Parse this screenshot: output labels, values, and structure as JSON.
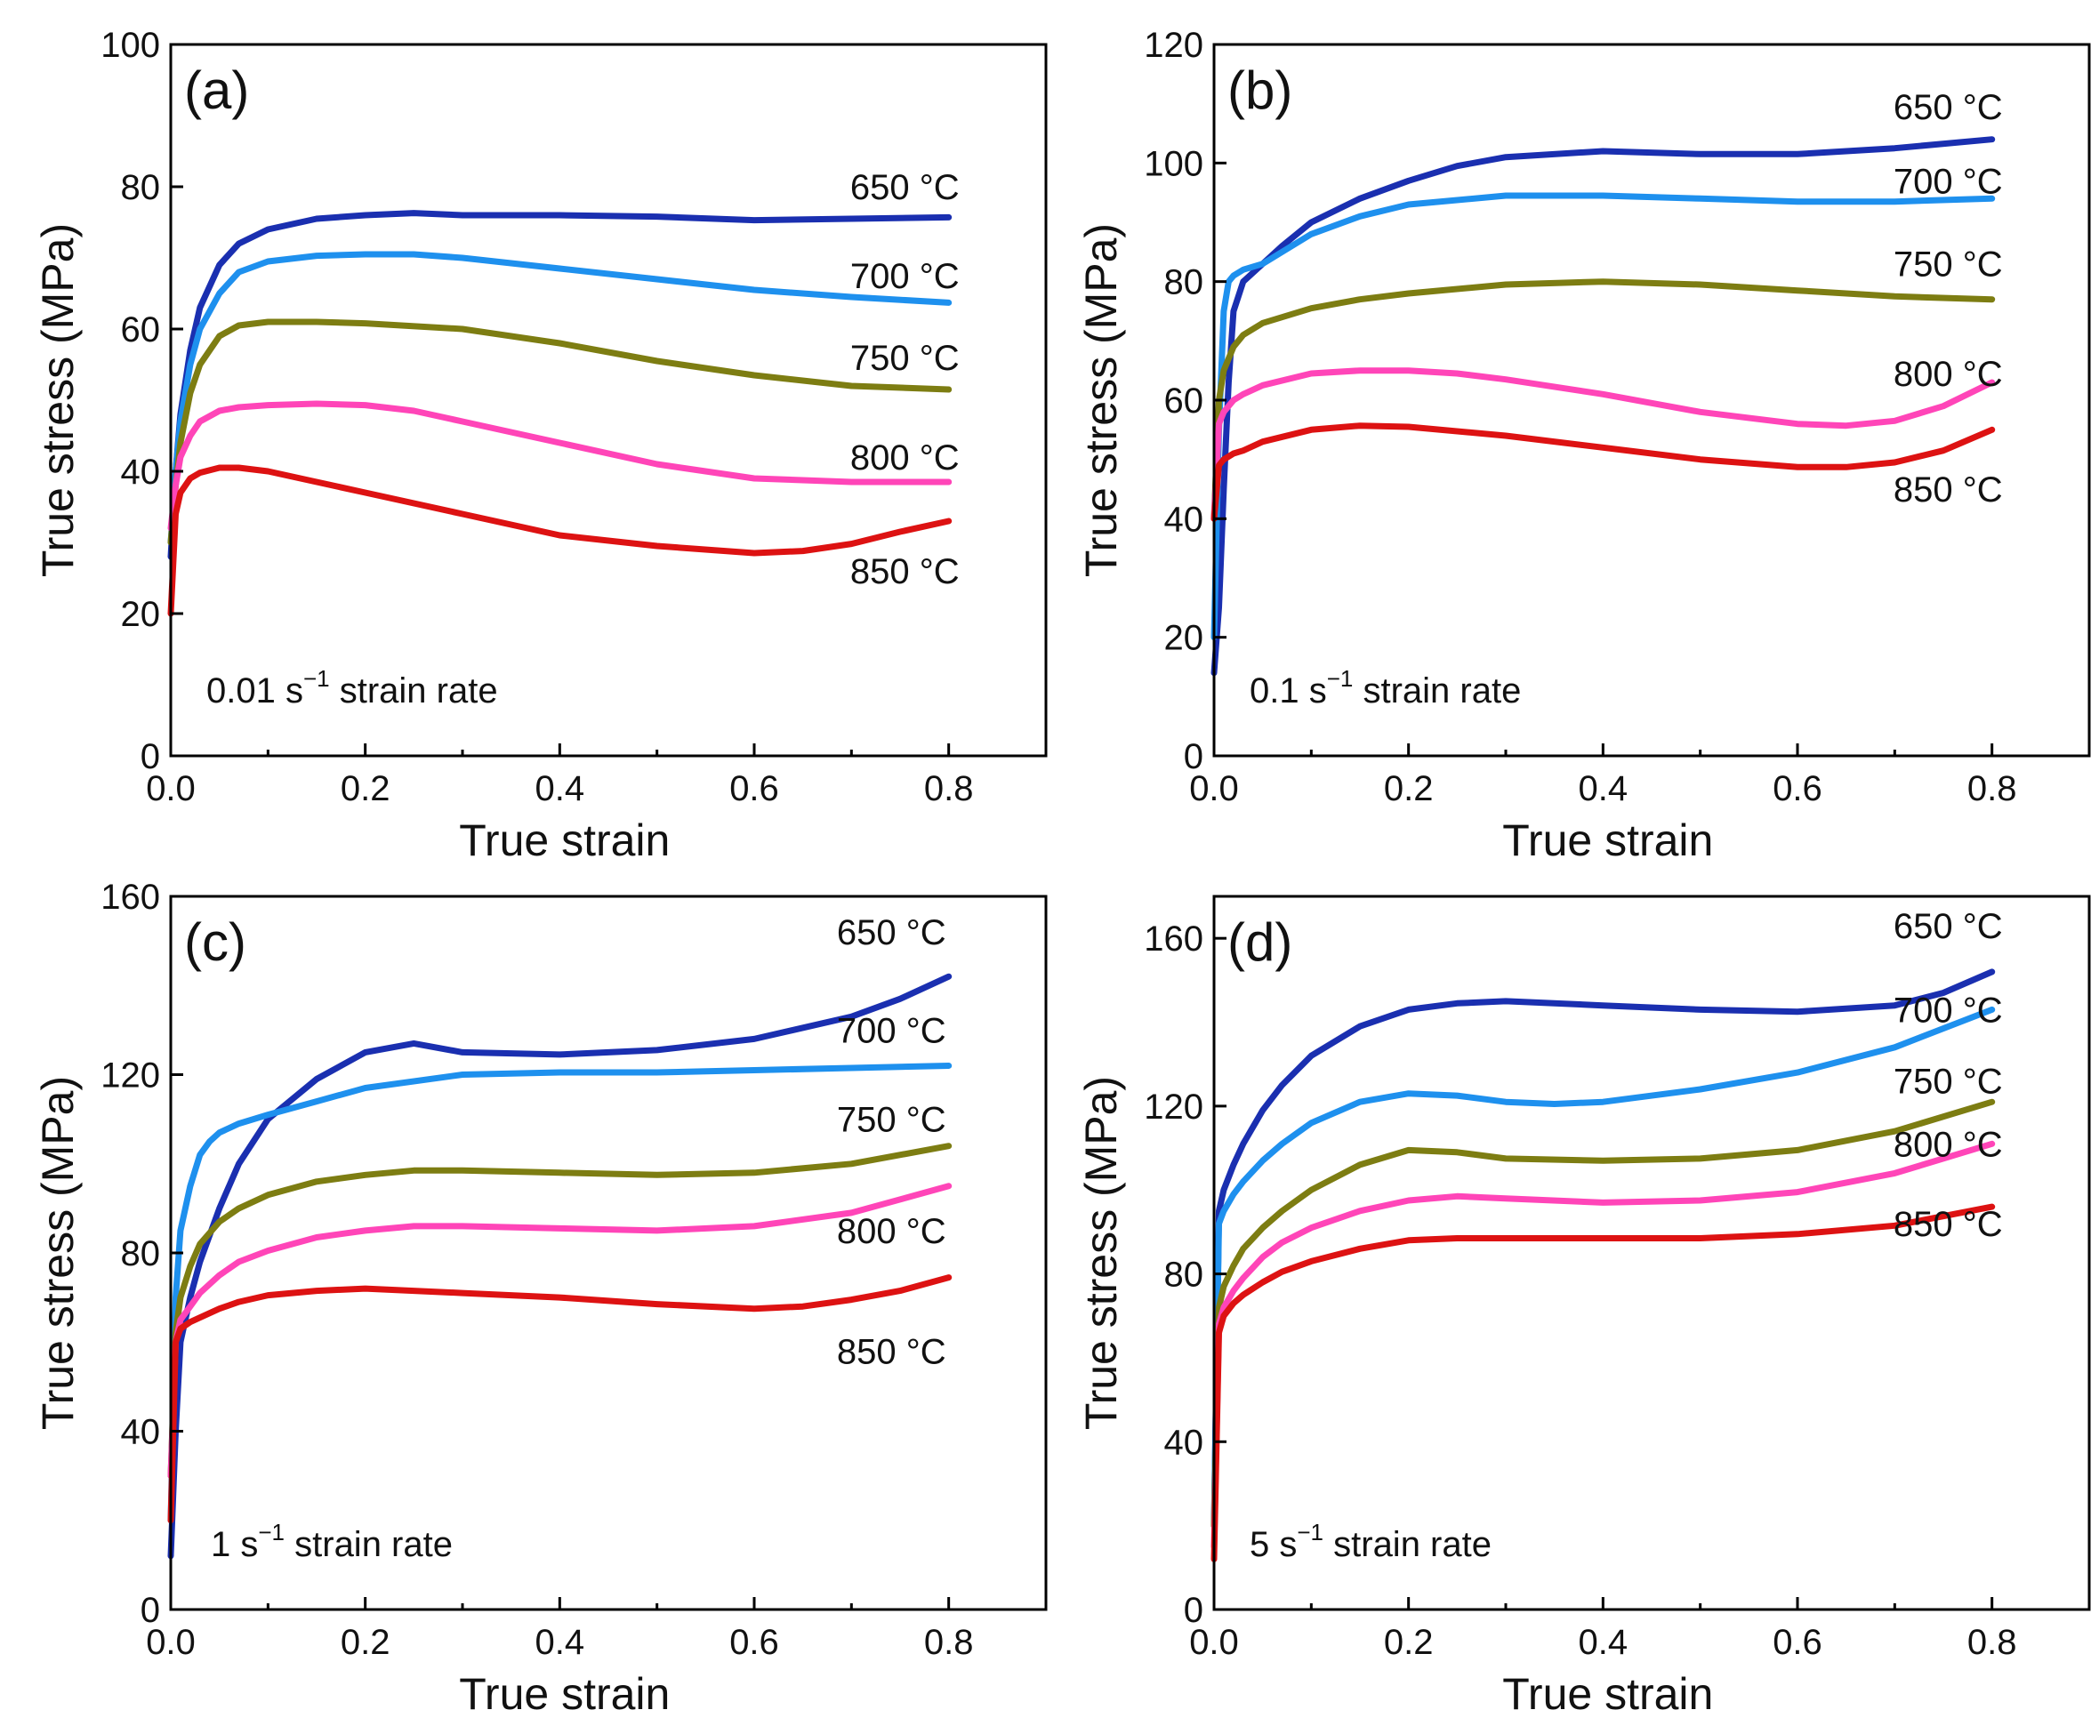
{
  "figure": {
    "panels": [
      {
        "letter": "(a)",
        "rate_prefix": "0.01 s",
        "rate_exp": "−1",
        "rate_suffix": " strain rate",
        "xlabel": "True strain",
        "ylabel": "True stress (MPa)",
        "chart": "0"
      },
      {
        "letter": "(b)",
        "rate_prefix": "0.1 s",
        "rate_exp": "−1",
        "rate_suffix": " strain rate",
        "xlabel": "True strain",
        "ylabel": "True stress (MPa)",
        "chart": "1"
      },
      {
        "letter": "(c)",
        "rate_prefix": "1 s",
        "rate_exp": "−1",
        "rate_suffix": " strain rate",
        "xlabel": "True strain",
        "ylabel": "True stress (MPa)",
        "chart": "2"
      },
      {
        "letter": "(d)",
        "rate_prefix": "5 s",
        "rate_exp": "−1",
        "rate_suffix": " strain rate",
        "xlabel": "True strain",
        "ylabel": "True stress (MPa)",
        "chart": "3"
      }
    ]
  },
  "chart_data": [
    {
      "type": "line",
      "xlabel": "True strain",
      "ylabel": "True stress (MPa)",
      "xlim": [
        0.0,
        0.9
      ],
      "ylim": [
        0,
        100
      ],
      "xticks": [
        "0.0",
        "0.2",
        "0.4",
        "0.6",
        "0.8"
      ],
      "yticks": [
        "0",
        "20",
        "40",
        "60",
        "80",
        "100"
      ],
      "grid": false,
      "annotations": [
        "(a)",
        "0.01 s−1 strain rate"
      ],
      "series": [
        {
          "name": "650 °C",
          "color": "#1a2fb0",
          "x": [
            0,
            0.005,
            0.01,
            0.02,
            0.03,
            0.05,
            0.07,
            0.1,
            0.15,
            0.2,
            0.25,
            0.3,
            0.4,
            0.5,
            0.6,
            0.7,
            0.8
          ],
          "y": [
            28,
            40,
            48,
            57,
            63,
            69,
            72,
            74,
            75.5,
            76,
            76.3,
            76,
            76,
            75.8,
            75.3,
            75.5,
            75.7
          ]
        },
        {
          "name": "700 °C",
          "color": "#1e90ee",
          "x": [
            0,
            0.005,
            0.01,
            0.02,
            0.03,
            0.05,
            0.07,
            0.1,
            0.15,
            0.2,
            0.25,
            0.3,
            0.4,
            0.5,
            0.6,
            0.7,
            0.8
          ],
          "y": [
            30,
            40,
            47,
            55,
            60,
            65,
            68,
            69.5,
            70.3,
            70.5,
            70.5,
            70,
            68.5,
            67,
            65.5,
            64.5,
            63.7
          ]
        },
        {
          "name": "750 °C",
          "color": "#7d7d12",
          "x": [
            0,
            0.005,
            0.01,
            0.02,
            0.03,
            0.05,
            0.07,
            0.1,
            0.15,
            0.2,
            0.3,
            0.4,
            0.5,
            0.6,
            0.7,
            0.8
          ],
          "y": [
            30,
            38,
            44,
            51,
            55,
            59,
            60.5,
            61,
            61,
            60.8,
            60,
            58,
            55.5,
            53.5,
            52,
            51.5
          ]
        },
        {
          "name": "800 °C",
          "color": "#ff45b8",
          "x": [
            0,
            0.005,
            0.01,
            0.02,
            0.03,
            0.05,
            0.07,
            0.1,
            0.15,
            0.2,
            0.25,
            0.3,
            0.4,
            0.5,
            0.6,
            0.7,
            0.8
          ],
          "y": [
            32,
            38,
            42,
            45,
            47,
            48.5,
            49,
            49.3,
            49.5,
            49.3,
            48.5,
            47,
            44,
            41,
            39,
            38.5,
            38.5
          ]
        },
        {
          "name": "850 °C",
          "color": "#dd1212",
          "x": [
            0,
            0.005,
            0.01,
            0.02,
            0.03,
            0.05,
            0.07,
            0.1,
            0.15,
            0.2,
            0.3,
            0.4,
            0.5,
            0.6,
            0.65,
            0.7,
            0.75,
            0.8
          ],
          "y": [
            20,
            34,
            37,
            39,
            39.8,
            40.5,
            40.5,
            40,
            38.5,
            37,
            34,
            31,
            29.5,
            28.5,
            28.8,
            29.8,
            31.5,
            33
          ]
        }
      ]
    },
    {
      "type": "line",
      "xlabel": "True strain",
      "ylabel": "True stress (MPa)",
      "xlim": [
        0.0,
        0.9
      ],
      "ylim": [
        0,
        120
      ],
      "xticks": [
        "0.0",
        "0.2",
        "0.4",
        "0.6",
        "0.8"
      ],
      "yticks": [
        "0",
        "20",
        "40",
        "60",
        "80",
        "100",
        "120"
      ],
      "grid": false,
      "annotations": [
        "(b)",
        "0.1 s−1 strain rate"
      ],
      "series": [
        {
          "name": "650 °C",
          "color": "#1a2fb0",
          "x": [
            0,
            0.005,
            0.01,
            0.015,
            0.02,
            0.03,
            0.05,
            0.07,
            0.1,
            0.15,
            0.2,
            0.25,
            0.3,
            0.4,
            0.5,
            0.6,
            0.7,
            0.8
          ],
          "y": [
            14,
            25,
            45,
            63,
            75,
            80,
            83,
            86,
            90,
            94,
            97,
            99.5,
            101,
            102,
            101.5,
            101.5,
            102.5,
            104
          ]
        },
        {
          "name": "700 °C",
          "color": "#1e90ee",
          "x": [
            0,
            0.005,
            0.01,
            0.015,
            0.02,
            0.03,
            0.05,
            0.07,
            0.1,
            0.15,
            0.2,
            0.3,
            0.4,
            0.5,
            0.6,
            0.7,
            0.8
          ],
          "y": [
            20,
            55,
            75,
            80,
            81,
            82,
            83,
            85,
            88,
            91,
            93,
            94.5,
            94.5,
            94,
            93.5,
            93.5,
            94
          ]
        },
        {
          "name": "750 °C",
          "color": "#7d7d12",
          "x": [
            0,
            0.005,
            0.01,
            0.02,
            0.03,
            0.05,
            0.1,
            0.15,
            0.2,
            0.3,
            0.4,
            0.5,
            0.6,
            0.7,
            0.8
          ],
          "y": [
            40,
            60,
            65,
            69,
            71,
            73,
            75.5,
            77,
            78,
            79.5,
            80,
            79.5,
            78.5,
            77.5,
            77
          ]
        },
        {
          "name": "800 °C",
          "color": "#ff45b8",
          "x": [
            0,
            0.005,
            0.01,
            0.02,
            0.03,
            0.05,
            0.1,
            0.15,
            0.2,
            0.25,
            0.3,
            0.4,
            0.5,
            0.6,
            0.65,
            0.7,
            0.75,
            0.8
          ],
          "y": [
            40,
            56,
            58,
            60,
            61,
            62.5,
            64.5,
            65,
            65,
            64.5,
            63.5,
            61,
            58,
            56,
            55.7,
            56.5,
            59,
            63
          ]
        },
        {
          "name": "850 °C",
          "color": "#dd1212",
          "x": [
            0,
            0.005,
            0.01,
            0.02,
            0.03,
            0.05,
            0.1,
            0.15,
            0.2,
            0.3,
            0.4,
            0.5,
            0.6,
            0.65,
            0.7,
            0.75,
            0.8
          ],
          "y": [
            40,
            49,
            50,
            51,
            51.5,
            53,
            55,
            55.7,
            55.5,
            54,
            52,
            50,
            48.7,
            48.7,
            49.5,
            51.5,
            55
          ]
        }
      ]
    },
    {
      "type": "line",
      "xlabel": "True strain",
      "ylabel": "True stress (MPa)",
      "xlim": [
        0.0,
        0.9
      ],
      "ylim": [
        0,
        160
      ],
      "xticks": [
        "0.0",
        "0.2",
        "0.4",
        "0.6",
        "0.8"
      ],
      "yticks": [
        "0",
        "40",
        "80",
        "120",
        "160"
      ],
      "grid": false,
      "annotations": [
        "(c)",
        "1 s−1 strain rate"
      ],
      "series": [
        {
          "name": "650 °C",
          "color": "#1a2fb0",
          "x": [
            0,
            0.005,
            0.01,
            0.02,
            0.03,
            0.05,
            0.07,
            0.1,
            0.15,
            0.2,
            0.25,
            0.3,
            0.4,
            0.5,
            0.6,
            0.7,
            0.75,
            0.8
          ],
          "y": [
            12,
            40,
            60,
            70,
            78,
            90,
            100,
            110,
            119,
            125,
            127,
            125,
            124.5,
            125.5,
            128,
            133,
            137,
            142
          ]
        },
        {
          "name": "700 °C",
          "color": "#1e90ee",
          "x": [
            0,
            0.005,
            0.01,
            0.02,
            0.03,
            0.04,
            0.05,
            0.07,
            0.1,
            0.15,
            0.2,
            0.3,
            0.4,
            0.5,
            0.6,
            0.7,
            0.8
          ],
          "y": [
            20,
            70,
            85,
            95,
            102,
            105,
            107,
            109,
            111,
            114,
            117,
            120,
            120.5,
            120.5,
            121,
            121.5,
            122
          ]
        },
        {
          "name": "750 °C",
          "color": "#7d7d12",
          "x": [
            0,
            0.005,
            0.01,
            0.02,
            0.03,
            0.05,
            0.07,
            0.1,
            0.15,
            0.2,
            0.25,
            0.3,
            0.4,
            0.5,
            0.6,
            0.7,
            0.8
          ],
          "y": [
            30,
            62,
            70,
            77,
            82,
            87,
            90,
            93,
            96,
            97.5,
            98.5,
            98.5,
            98,
            97.5,
            98,
            100,
            104
          ]
        },
        {
          "name": "800 °C",
          "color": "#ff45b8",
          "x": [
            0,
            0.005,
            0.01,
            0.02,
            0.03,
            0.05,
            0.07,
            0.1,
            0.15,
            0.2,
            0.25,
            0.3,
            0.4,
            0.5,
            0.6,
            0.7,
            0.8
          ],
          "y": [
            30,
            60,
            65,
            68,
            71,
            75,
            78,
            80.5,
            83.5,
            85,
            86,
            86,
            85.5,
            85,
            86,
            89,
            95
          ]
        },
        {
          "name": "850 °C",
          "color": "#dd1212",
          "x": [
            0,
            0.005,
            0.01,
            0.02,
            0.03,
            0.05,
            0.07,
            0.1,
            0.15,
            0.2,
            0.25,
            0.3,
            0.4,
            0.5,
            0.6,
            0.65,
            0.7,
            0.75,
            0.8
          ],
          "y": [
            20,
            60,
            63,
            64.5,
            65.5,
            67.5,
            69,
            70.5,
            71.5,
            72,
            71.5,
            71,
            70,
            68.5,
            67.5,
            68,
            69.5,
            71.5,
            74.5
          ]
        }
      ]
    },
    {
      "type": "line",
      "xlabel": "True strain",
      "ylabel": "True stress (MPa)",
      "xlim": [
        0.0,
        0.9
      ],
      "ylim": [
        0,
        170
      ],
      "xticks": [
        "0.0",
        "0.2",
        "0.4",
        "0.6",
        "0.8"
      ],
      "yticks": [
        "0",
        "40",
        "80",
        "120",
        "160"
      ],
      "grid": false,
      "annotations": [
        "(d)",
        "5 s−1 strain rate"
      ],
      "series": [
        {
          "name": "650 °C",
          "color": "#1a2fb0",
          "x": [
            0,
            0.005,
            0.01,
            0.02,
            0.03,
            0.05,
            0.07,
            0.1,
            0.15,
            0.2,
            0.25,
            0.3,
            0.4,
            0.5,
            0.6,
            0.7,
            0.75,
            0.8
          ],
          "y": [
            20,
            95,
            100,
            106,
            111,
            119,
            125,
            132,
            139,
            143,
            144.5,
            145,
            144,
            143,
            142.5,
            144,
            147,
            152
          ]
        },
        {
          "name": "700 °C",
          "color": "#1e90ee",
          "x": [
            0,
            0.005,
            0.01,
            0.02,
            0.03,
            0.05,
            0.07,
            0.1,
            0.15,
            0.2,
            0.25,
            0.3,
            0.35,
            0.4,
            0.5,
            0.6,
            0.7,
            0.8
          ],
          "y": [
            20,
            92,
            95,
            99,
            102,
            107,
            111,
            116,
            121,
            123,
            122.5,
            121,
            120.5,
            121,
            124,
            128,
            134,
            143
          ]
        },
        {
          "name": "750 °C",
          "color": "#7d7d12",
          "x": [
            0,
            0.005,
            0.01,
            0.02,
            0.03,
            0.05,
            0.07,
            0.1,
            0.15,
            0.2,
            0.25,
            0.3,
            0.4,
            0.5,
            0.6,
            0.7,
            0.8
          ],
          "y": [
            20,
            72,
            77,
            82,
            86,
            91,
            95,
            100,
            106,
            109.5,
            109,
            107.5,
            107,
            107.5,
            109.5,
            114,
            121
          ]
        },
        {
          "name": "800 °C",
          "color": "#ff45b8",
          "x": [
            0,
            0.005,
            0.01,
            0.02,
            0.03,
            0.05,
            0.07,
            0.1,
            0.15,
            0.2,
            0.25,
            0.3,
            0.4,
            0.5,
            0.6,
            0.7,
            0.8
          ],
          "y": [
            15,
            68,
            72,
            76,
            79,
            84,
            87.5,
            91,
            95,
            97.5,
            98.5,
            98,
            97,
            97.5,
            99.5,
            104,
            111
          ]
        },
        {
          "name": "850 °C",
          "color": "#dd1212",
          "x": [
            0,
            0.005,
            0.01,
            0.02,
            0.03,
            0.05,
            0.07,
            0.1,
            0.15,
            0.2,
            0.25,
            0.3,
            0.4,
            0.5,
            0.6,
            0.7,
            0.8
          ],
          "y": [
            12,
            66,
            70,
            73,
            75,
            78,
            80.5,
            83,
            86,
            88,
            88.5,
            88.5,
            88.5,
            88.5,
            89.5,
            91.5,
            96
          ]
        }
      ]
    }
  ]
}
